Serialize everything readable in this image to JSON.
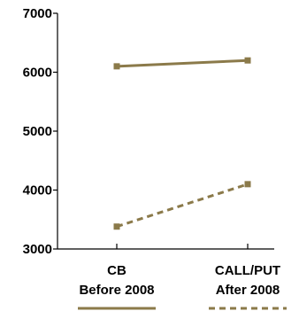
{
  "colors": {
    "series": "#8B7A4A",
    "axis": "#000000"
  },
  "chart_data": {
    "type": "line",
    "title": "",
    "xlabel": "",
    "ylabel": "",
    "categories": [
      [
        "CB",
        "Before 2008"
      ],
      [
        "CALL/PUT",
        "After 2008"
      ]
    ],
    "ylim": [
      3000,
      7000
    ],
    "yticks": [
      3000,
      4000,
      5000,
      6000,
      7000
    ],
    "series": [
      {
        "values": [
          6100,
          6200
        ],
        "style": "solid"
      },
      {
        "values": [
          3380,
          4100
        ],
        "style": "dashed"
      }
    ],
    "legend": [
      "solid",
      "dashed"
    ],
    "grid": false
  }
}
